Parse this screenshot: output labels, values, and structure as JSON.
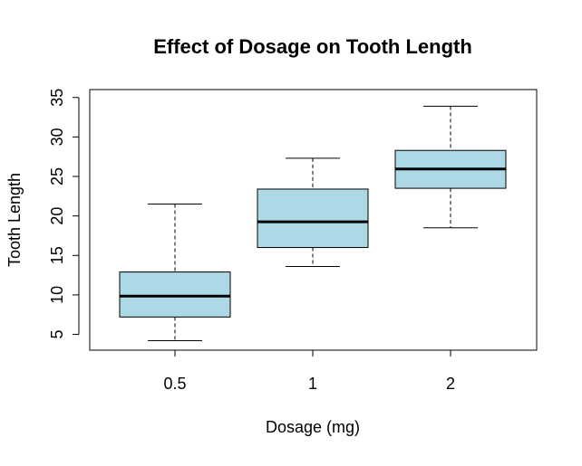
{
  "chart_data": {
    "type": "box",
    "title": "Effect of Dosage on Tooth Length",
    "xlabel": "Dosage (mg)",
    "ylabel": "Tooth Length",
    "categories": [
      "0.5",
      "1",
      "2"
    ],
    "yticks": [
      "5",
      "10",
      "15",
      "20",
      "25",
      "30",
      "35"
    ],
    "ylim": [
      3,
      36
    ],
    "box_color": "#add8e6",
    "grid": false,
    "boxes": [
      {
        "category": "0.5",
        "min": 4.2,
        "q1": 7.2,
        "median": 9.85,
        "q3": 12.9,
        "max": 21.5
      },
      {
        "category": "1",
        "min": 13.6,
        "q1": 16.0,
        "median": 19.25,
        "q3": 23.4,
        "max": 27.3
      },
      {
        "category": "2",
        "min": 18.5,
        "q1": 23.5,
        "median": 25.95,
        "q3": 28.3,
        "max": 33.9
      }
    ]
  }
}
